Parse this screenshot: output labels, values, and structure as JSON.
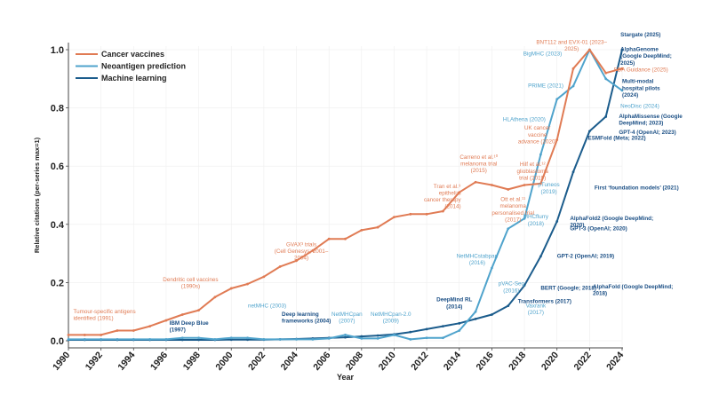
{
  "chart_data": {
    "type": "line",
    "title": "",
    "xlabel": "Year",
    "ylabel": "Relative citations (per-series max=1)",
    "xlim": [
      1990,
      2024
    ],
    "ylim": [
      0,
      1.0
    ],
    "grid": true,
    "legend_position": "top-left",
    "x_ticks": [
      "1990",
      "1992",
      "1994",
      "1996",
      "1998",
      "2000",
      "2002",
      "2004",
      "2006",
      "2008",
      "2010",
      "2012",
      "2014",
      "2016",
      "2018",
      "2020",
      "2022",
      "2024"
    ],
    "y_ticks": [
      "0.0",
      "0.2",
      "0.4",
      "0.6",
      "0.8",
      "1.0"
    ],
    "x": [
      1990,
      1991,
      1992,
      1993,
      1994,
      1995,
      1996,
      1997,
      1998,
      1999,
      2000,
      2001,
      2002,
      2003,
      2004,
      2005,
      2006,
      2007,
      2008,
      2009,
      2010,
      2011,
      2012,
      2013,
      2014,
      2015,
      2016,
      2017,
      2018,
      2019,
      2020,
      2021,
      2022,
      2023,
      2024
    ],
    "series": [
      {
        "name": "Cancer vaccines",
        "color": "#E07B54",
        "values": [
          0.02,
          0.02,
          0.02,
          0.035,
          0.035,
          0.05,
          0.07,
          0.09,
          0.105,
          0.15,
          0.18,
          0.195,
          0.22,
          0.255,
          0.275,
          0.31,
          0.35,
          0.35,
          0.38,
          0.39,
          0.425,
          0.435,
          0.435,
          0.445,
          0.51,
          0.545,
          0.535,
          0.52,
          0.535,
          0.54,
          0.69,
          0.935,
          1.0,
          0.92,
          0.935
        ]
      },
      {
        "name": "Neoantigen prediction",
        "color": "#4FA3CC",
        "values": [
          0.005,
          0.005,
          0.005,
          0.005,
          0.005,
          0.005,
          0.005,
          0.01,
          0.01,
          0.005,
          0.01,
          0.01,
          0.005,
          0.005,
          0.005,
          0.005,
          0.008,
          0.02,
          0.008,
          0.008,
          0.02,
          0.005,
          0.01,
          0.01,
          0.035,
          0.1,
          0.25,
          0.385,
          0.42,
          0.64,
          0.83,
          0.875,
          1.0,
          0.9,
          0.86
        ]
      },
      {
        "name": "Machine learning",
        "color": "#1B5C8C",
        "values": [
          0.003,
          0.003,
          0.003,
          0.003,
          0.003,
          0.003,
          0.003,
          0.003,
          0.003,
          0.003,
          0.004,
          0.004,
          0.004,
          0.005,
          0.006,
          0.008,
          0.01,
          0.012,
          0.015,
          0.018,
          0.022,
          0.03,
          0.04,
          0.05,
          0.06,
          0.075,
          0.09,
          0.12,
          0.19,
          0.29,
          0.41,
          0.58,
          0.72,
          0.77,
          1.0
        ]
      }
    ],
    "annotations": [
      {
        "series": "Cancer vaccines",
        "lines": [
          "Tumour-specific antigens",
          "identified (1991)"
        ],
        "x": 1990.3,
        "y": 0.095,
        "anchor": "start"
      },
      {
        "series": "Cancer vaccines",
        "lines": [
          "Dendritic cell vaccines",
          "(1990s)"
        ],
        "x": 1997.5,
        "y": 0.205,
        "anchor": "middle"
      },
      {
        "series": "Cancer vaccines",
        "lines": [
          "GVAX³ trials",
          "(Cell Genesys; 2001–",
          "2004)"
        ],
        "x": 2004.3,
        "y": 0.325,
        "anchor": "middle"
      },
      {
        "series": "Cancer vaccines",
        "lines": [
          "Tran et al.⁹",
          "epithelial",
          "cancer therapy",
          "(2014)"
        ],
        "x": 2014.1,
        "y": 0.525,
        "anchor": "end"
      },
      {
        "series": "Cancer vaccines",
        "lines": [
          "Carreno et al.¹⁰",
          "melanoma trial",
          "(2015)"
        ],
        "x": 2015.2,
        "y": 0.625,
        "anchor": "middle"
      },
      {
        "series": "Cancer vaccines",
        "lines": [
          "Hilf et al.¹²",
          "glioblastoma",
          "trial (2019)"
        ],
        "x": 2018.5,
        "y": 0.6,
        "anchor": "middle"
      },
      {
        "series": "Cancer vaccines",
        "lines": [
          "Ott et al.¹¹",
          "melanoma",
          "personalised trial",
          "(2017)"
        ],
        "x": 2017.3,
        "y": 0.48,
        "anchor": "middle"
      },
      {
        "series": "Cancer vaccines",
        "lines": [
          "UK cancer",
          "vaccine",
          "advance (2020)"
        ],
        "x": 2018.8,
        "y": 0.725,
        "anchor": "middle"
      },
      {
        "series": "Cancer vaccines",
        "lines": [
          "BNT112 and EVX-01 (2023–",
          "2025)"
        ],
        "x": 2020.9,
        "y": 1.02,
        "anchor": "middle"
      },
      {
        "series": "Cancer vaccines",
        "lines": [
          "FDA Guidance (2025)"
        ],
        "x": 2023.5,
        "y": 0.925,
        "anchor": "start"
      },
      {
        "series": "Neoantigen prediction",
        "lines": [
          "netMHC  (2003)"
        ],
        "x": 2002.2,
        "y": 0.115,
        "anchor": "middle"
      },
      {
        "series": "Neoantigen prediction",
        "lines": [
          "NetMHCpan",
          "(2007)"
        ],
        "x": 2007.1,
        "y": 0.085,
        "anchor": "middle"
      },
      {
        "series": "Neoantigen prediction",
        "lines": [
          "NetMHCpan-2.0",
          "(2009)"
        ],
        "x": 2009.8,
        "y": 0.085,
        "anchor": "middle"
      },
      {
        "series": "Neoantigen prediction",
        "lines": [
          "NetMHCstabpan",
          "(2016)"
        ],
        "x": 2015.1,
        "y": 0.285,
        "anchor": "middle"
      },
      {
        "series": "Neoantigen prediction",
        "lines": [
          "pVAC-Seq",
          "(2016)"
        ],
        "x": 2017.2,
        "y": 0.19,
        "anchor": "middle"
      },
      {
        "series": "Neoantigen prediction",
        "lines": [
          "Vaxrank",
          "(2017)"
        ],
        "x": 2018.7,
        "y": 0.115,
        "anchor": "middle"
      },
      {
        "series": "Neoantigen prediction",
        "lines": [
          "MHCflurry",
          "(2018)"
        ],
        "x": 2018.7,
        "y": 0.42,
        "anchor": "middle"
      },
      {
        "series": "Neoantigen prediction",
        "lines": [
          "pTuneos",
          "(2019)"
        ],
        "x": 2019.5,
        "y": 0.53,
        "anchor": "middle"
      },
      {
        "series": "Neoantigen prediction",
        "lines": [
          "HLAthena (2020)"
        ],
        "x": 2019.3,
        "y": 0.755,
        "anchor": "end"
      },
      {
        "series": "Neoantigen prediction",
        "lines": [
          "PRIME (2021)"
        ],
        "x": 2020.4,
        "y": 0.87,
        "anchor": "end"
      },
      {
        "series": "Neoantigen prediction",
        "lines": [
          "BigMHC (2023)"
        ],
        "x": 2020.3,
        "y": 0.98,
        "anchor": "end"
      },
      {
        "series": "Neoantigen prediction",
        "lines": [
          "NeoDisc (2024)"
        ],
        "x": 2023.9,
        "y": 0.8,
        "anchor": "start"
      },
      {
        "series": "Machine learning",
        "lines": [
          "IBM Deep Blue",
          "(1997)"
        ],
        "x": 1996.2,
        "y": 0.055,
        "anchor": "start"
      },
      {
        "series": "Machine learning",
        "lines": [
          "Deep learning",
          "frameworks (2004)"
        ],
        "x": 2003.1,
        "y": 0.085,
        "anchor": "start"
      },
      {
        "series": "Machine learning",
        "lines": [
          "DeepMind RL",
          "(2014)"
        ],
        "x": 2013.7,
        "y": 0.135,
        "anchor": "middle"
      },
      {
        "series": "Machine learning",
        "lines": [
          "Transformers (2017)"
        ],
        "x": 2017.6,
        "y": 0.13,
        "anchor": "start"
      },
      {
        "series": "Machine learning",
        "lines": [
          "BERT  (Google; 2018)"
        ],
        "x": 2019.0,
        "y": 0.175,
        "anchor": "start"
      },
      {
        "series": "Machine learning",
        "lines": [
          "AlphaFold  (Google DeepMind;",
          "2018)"
        ],
        "x": 2022.2,
        "y": 0.18,
        "anchor": "start"
      },
      {
        "series": "Machine learning",
        "lines": [
          "GPT-2  (OpenAI; 2019)"
        ],
        "x": 2020.0,
        "y": 0.285,
        "anchor": "start"
      },
      {
        "series": "Machine learning",
        "lines": [
          "GPT-3  (OpenAI; 2020)"
        ],
        "x": 2020.8,
        "y": 0.38,
        "anchor": "start"
      },
      {
        "series": "Machine learning",
        "lines": [
          "AlphaFold2 (Google DeepMind;",
          "2020)"
        ],
        "x": 2020.8,
        "y": 0.415,
        "anchor": "start"
      },
      {
        "series": "Machine learning",
        "lines": [
          "First ‘foundation models’ (2021)"
        ],
        "x": 2022.3,
        "y": 0.52,
        "anchor": "start"
      },
      {
        "series": "Machine learning",
        "lines": [
          "ESMFold  (Meta; 2022)"
        ],
        "x": 2021.9,
        "y": 0.69,
        "anchor": "start"
      },
      {
        "series": "Machine learning",
        "lines": [
          "GPT-4 (OpenAI; 2023)"
        ],
        "x": 2023.8,
        "y": 0.71,
        "anchor": "start"
      },
      {
        "series": "Machine learning",
        "lines": [
          "AlphaMissense (Google",
          "DeepMind; 2023)"
        ],
        "x": 2023.8,
        "y": 0.765,
        "anchor": "start"
      },
      {
        "series": "Machine learning",
        "lines": [
          "Multi-modal",
          "hospital pilots",
          "(2024)"
        ],
        "x": 2024.0,
        "y": 0.885,
        "anchor": "start"
      },
      {
        "series": "Machine learning",
        "lines": [
          "AlphaGenome",
          "(Google DeepMind;",
          "2025)"
        ],
        "x": 2023.9,
        "y": 0.995,
        "anchor": "start"
      },
      {
        "series": "Machine learning",
        "lines": [
          "Stargate (2025)"
        ],
        "x": 2023.9,
        "y": 1.045,
        "anchor": "start"
      }
    ]
  }
}
